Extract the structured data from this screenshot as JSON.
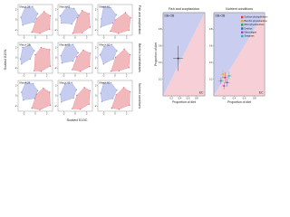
{
  "shared_labels": {
    "y_label": "Scaled δ15N",
    "x_label": "Scaled δ13C",
    "row_labels": [
      "Fish and zooplankton",
      "Benthic invertebrates",
      "Nutrient conditions"
    ]
  },
  "chart_data": [
    {
      "type": "scatter",
      "title": "March 28",
      "xlim": [
        -3,
        3
      ],
      "ylim": [
        -3,
        3
      ],
      "xticks": [
        -2,
        0,
        2
      ],
      "yticks": [
        -2,
        0,
        2
      ],
      "hull": true,
      "series": [
        {
          "color": "#8090dc",
          "x": [
            -2.5,
            -1.8,
            -0.5,
            0.4,
            -0.2,
            -2.2
          ],
          "y": [
            0.5,
            2.4,
            2.6,
            1.2,
            -0.4,
            -1.0
          ]
        },
        {
          "color": "#e2646c",
          "x": [
            -0.6,
            0.8,
            2.5,
            2.6,
            1.5,
            0.2
          ],
          "y": [
            -2.4,
            -2.6,
            -1.8,
            0.8,
            1.6,
            0.2
          ]
        }
      ]
    },
    {
      "type": "scatter",
      "title": "March 43",
      "xlim": [
        -3,
        3
      ],
      "ylim": [
        -3,
        3
      ],
      "xticks": [
        -2,
        0,
        2
      ],
      "yticks": [
        -2,
        0,
        2
      ],
      "hull": true,
      "series": [
        {
          "color": "#8090dc",
          "x": [
            -2.6,
            -1.5,
            -0.2,
            0.6,
            -0.6,
            -2.4
          ],
          "y": [
            0.8,
            2.5,
            2.2,
            0.9,
            -0.8,
            -0.6
          ]
        },
        {
          "color": "#e2646c",
          "x": [
            -0.4,
            1.2,
            2.6,
            2.4,
            1.2,
            0.4
          ],
          "y": [
            -2.6,
            -2.5,
            -1.4,
            1.2,
            1.8,
            0.4
          ]
        }
      ]
    },
    {
      "type": "scatter",
      "title": "March 60",
      "xlim": [
        -3,
        3
      ],
      "ylim": [
        -3,
        3
      ],
      "xticks": [
        -2,
        0,
        2
      ],
      "yticks": [
        -2,
        0,
        2
      ],
      "hull": true,
      "series": [
        {
          "color": "#8090dc",
          "x": [
            -2.4,
            -2.0,
            -0.8,
            0.2,
            -0.4,
            -2.5
          ],
          "y": [
            0.2,
            2.6,
            2.4,
            1.0,
            -0.6,
            -1.4
          ]
        },
        {
          "color": "#e2646c",
          "x": [
            -0.8,
            0.6,
            2.4,
            2.7,
            1.8,
            0.0
          ],
          "y": [
            -2.2,
            -2.6,
            -2.0,
            0.4,
            1.4,
            0.0
          ]
        }
      ]
    },
    {
      "type": "scatter",
      "title": "March 28",
      "xlim": [
        -3,
        3
      ],
      "ylim": [
        -3,
        3
      ],
      "xticks": [
        -2,
        0,
        2
      ],
      "yticks": [
        -2,
        0,
        2
      ],
      "hull": true,
      "series": [
        {
          "color": "#8090dc",
          "x": [
            -2.6,
            -2.2,
            -0.9,
            -0.2,
            -0.9,
            -2.4
          ],
          "y": [
            -0.2,
            2.0,
            2.5,
            1.4,
            -0.2,
            -1.2
          ]
        },
        {
          "color": "#e2646c",
          "x": [
            -0.2,
            1.0,
            2.6,
            2.5,
            1.0,
            0.0
          ],
          "y": [
            -2.5,
            -2.6,
            -1.6,
            1.6,
            2.0,
            0.6
          ]
        }
      ]
    },
    {
      "type": "scatter",
      "title": "March 43",
      "xlim": [
        -3,
        3
      ],
      "ylim": [
        -3,
        3
      ],
      "xticks": [
        -2,
        0,
        2
      ],
      "yticks": [
        -2,
        0,
        2
      ],
      "hull": true,
      "series": [
        {
          "color": "#8090dc",
          "x": [
            -2.5,
            -1.6,
            -0.4,
            0.5,
            -0.4,
            -2.3
          ],
          "y": [
            0.4,
            2.5,
            2.6,
            1.0,
            -0.6,
            -1.0
          ]
        },
        {
          "color": "#e2646c",
          "x": [
            -0.5,
            0.9,
            2.5,
            2.6,
            1.4,
            0.3
          ],
          "y": [
            -2.3,
            -2.6,
            -1.7,
            0.9,
            1.5,
            0.2
          ]
        }
      ]
    },
    {
      "type": "scatter",
      "title": "March 60",
      "xlim": [
        -3,
        3
      ],
      "ylim": [
        -3,
        3
      ],
      "xticks": [
        -2,
        0,
        2
      ],
      "yticks": [
        -2,
        0,
        2
      ],
      "hull": true,
      "series": [
        {
          "color": "#8090dc",
          "x": [
            -2.6,
            -1.9,
            -0.6,
            0.3,
            -0.3,
            -2.0
          ],
          "y": [
            0.6,
            2.2,
            2.6,
            1.4,
            -0.2,
            -1.2
          ]
        },
        {
          "color": "#e2646c",
          "x": [
            -0.7,
            0.7,
            2.4,
            2.6,
            1.6,
            0.1
          ],
          "y": [
            -2.6,
            -2.5,
            -1.9,
            0.6,
            1.7,
            0.1
          ]
        }
      ]
    },
    {
      "type": "scatter",
      "title": "March 28",
      "xlim": [
        -3,
        3
      ],
      "ylim": [
        -3,
        3
      ],
      "xticks": [
        -2,
        0,
        2
      ],
      "yticks": [
        -2,
        0,
        2
      ],
      "hull": true,
      "series": [
        {
          "color": "#8090dc",
          "x": [
            -2.4,
            -1.7,
            -0.4,
            0.4,
            -0.1,
            -2.1
          ],
          "y": [
            0.7,
            2.6,
            2.4,
            1.0,
            -0.5,
            -0.8
          ]
        },
        {
          "color": "#e2646c",
          "x": [
            -0.6,
            0.8,
            2.6,
            2.5,
            1.4,
            0.2
          ],
          "y": [
            -2.4,
            -2.7,
            -1.8,
            0.7,
            1.5,
            0.3
          ]
        }
      ]
    },
    {
      "type": "scatter",
      "title": "March 43",
      "xlim": [
        -3,
        3
      ],
      "ylim": [
        -3,
        3
      ],
      "xticks": [
        -2,
        0,
        2
      ],
      "yticks": [
        -2,
        0,
        2
      ],
      "hull": true,
      "series": [
        {
          "color": "#8090dc",
          "x": [
            -2.6,
            -1.8,
            -0.6,
            0.2,
            -0.3,
            -2.4
          ],
          "y": [
            0.3,
            2.3,
            2.6,
            1.2,
            -0.4,
            -1.2
          ]
        },
        {
          "color": "#e2646c",
          "x": [
            -0.5,
            0.9,
            2.4,
            2.6,
            1.6,
            0.3
          ],
          "y": [
            -2.5,
            -2.6,
            -1.6,
            1.0,
            1.6,
            0.1
          ]
        }
      ]
    },
    {
      "type": "scatter",
      "title": "March 60",
      "xlim": [
        -3,
        3
      ],
      "ylim": [
        -3,
        3
      ],
      "xticks": [
        -2,
        0,
        2
      ],
      "yticks": [
        -2,
        0,
        2
      ],
      "hull": true,
      "series": [
        {
          "color": "#8090dc",
          "x": [
            -2.5,
            -2.0,
            -0.7,
            0.3,
            -0.4,
            -2.3
          ],
          "y": [
            0.5,
            2.5,
            2.5,
            1.1,
            -0.5,
            -1.1
          ]
        },
        {
          "color": "#e2646c",
          "x": [
            -0.6,
            0.7,
            2.5,
            2.6,
            1.5,
            0.2
          ],
          "y": [
            -2.4,
            -2.6,
            -1.8,
            0.8,
            1.6,
            0.2
          ]
        }
      ]
    },
    {
      "type": "scatter",
      "title": "Fish and zooplankton",
      "x_label": "Proportion of diet",
      "y_label": "Proportion of diet",
      "xlim": [
        0,
        1
      ],
      "ylim": [
        0,
        1
      ],
      "xticks": [
        0.2,
        0.4,
        0.6,
        0.8
      ],
      "yticks": [
        0.2,
        0.4,
        0.6,
        0.8
      ],
      "regions": true,
      "annotations": [
        "DB-OB",
        "EC"
      ],
      "series": [
        {
          "color": "#333333",
          "x": [
            0.36
          ],
          "y": [
            0.45
          ],
          "xerr": [
            0.12
          ],
          "yerr": [
            0.15
          ]
        }
      ]
    },
    {
      "type": "scatter",
      "title": "Nutrient conditions",
      "x_label": "Proportion of diet",
      "xlim": [
        0,
        1
      ],
      "ylim": [
        0,
        1
      ],
      "xticks": [
        0.2,
        0.4,
        0.6,
        0.8
      ],
      "yticks": [
        0.2,
        0.4,
        0.6,
        0.8
      ],
      "regions": true,
      "annotations": [
        "DB-OB",
        "EC"
      ],
      "legend": "upper right",
      "series": [
        {
          "name": "Surface phytoplankton",
          "color": "#e03030",
          "x": [
            0.22
          ],
          "y": [
            0.22
          ],
          "xerr": [
            0.06
          ],
          "yerr": [
            0.06
          ]
        },
        {
          "name": "Benthic phytoplankton",
          "color": "#f0a020",
          "x": [
            0.18
          ],
          "y": [
            0.26
          ],
          "xerr": [
            0.05
          ],
          "yerr": [
            0.05
          ]
        },
        {
          "name": "Microphytobenthos",
          "color": "#30a030",
          "x": [
            0.14
          ],
          "y": [
            0.18
          ],
          "xerr": [
            0.05
          ],
          "yerr": [
            0.04
          ]
        },
        {
          "name": "Detritus",
          "color": "#3060d0",
          "x": [
            0.26
          ],
          "y": [
            0.16
          ],
          "xerr": [
            0.05
          ],
          "yerr": [
            0.05
          ]
        },
        {
          "name": "Macroalgae",
          "color": "#a040c0",
          "x": [
            0.2
          ],
          "y": [
            0.12
          ],
          "xerr": [
            0.04
          ],
          "yerr": [
            0.04
          ]
        },
        {
          "name": "Seagrass",
          "color": "#20b0b0",
          "x": [
            0.3
          ],
          "y": [
            0.24
          ],
          "xerr": [
            0.05
          ],
          "yerr": [
            0.05
          ]
        }
      ]
    }
  ]
}
